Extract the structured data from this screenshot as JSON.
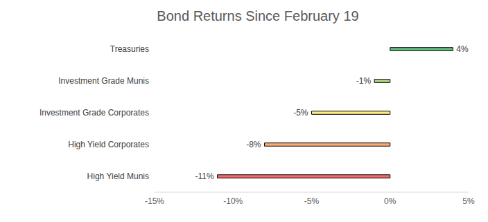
{
  "chart_data": {
    "type": "bar",
    "title": "Bond Returns Since February 19",
    "orientation": "horizontal",
    "categories": [
      "Treasuries",
      "Investment Grade Munis",
      "Investment Grade Corporates",
      "High Yield Corporates",
      "High Yield Munis"
    ],
    "values": [
      4,
      -1,
      -5,
      -8,
      -11
    ],
    "value_labels": [
      "4%",
      "-1%",
      "-5%",
      "-8%",
      "-11%"
    ],
    "colors": [
      "#63be7b",
      "#b1d580",
      "#ffeb84",
      "#fbaa77",
      "#f8696b"
    ],
    "xlim": [
      -15,
      5
    ],
    "xticks": [
      {
        "value": -15,
        "label": "-15%"
      },
      {
        "value": -10,
        "label": "-10%"
      },
      {
        "value": -5,
        "label": "-5%"
      },
      {
        "value": 0,
        "label": "0%"
      },
      {
        "value": 5,
        "label": "5%"
      }
    ],
    "grid": false,
    "data_labels": true
  }
}
